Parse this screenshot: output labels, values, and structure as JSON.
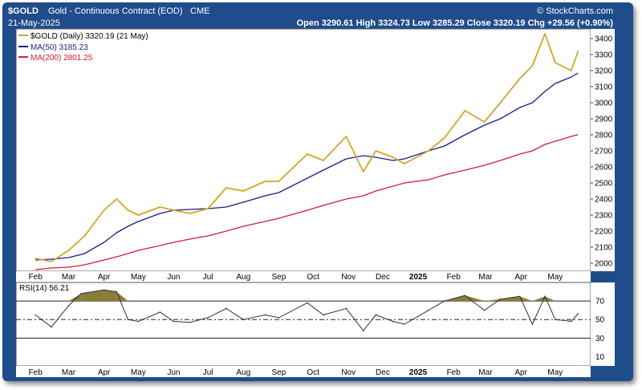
{
  "header": {
    "symbol": "$GOLD",
    "description": "Gold - Continuous Contract (EOD)",
    "exchange": "CME",
    "watermark": "© StockCharts.com",
    "date": "21-May-2025",
    "quote": "Open 3290.61  High 3324.73  Low 3285.29  Close 3320.19  Chg +29.56 (+0.90%)"
  },
  "legend": {
    "price": "$GOLD (Daily) 3320.19 (21 May)",
    "ma50": "MA(50) 3185.23",
    "ma200": "MA(200) 2801.25",
    "rsi": "RSI(14) 56.21"
  },
  "colors": {
    "frame": "#1f4d8b",
    "price": "#d4a52b",
    "ma50": "#1c1c8c",
    "ma200": "#d41a3c",
    "rsi_fill": "#8a7d3c"
  },
  "chart_data": [
    {
      "type": "line",
      "title": "$GOLD (Daily)",
      "x": [
        "2024-02-01",
        "2024-02-15",
        "2024-03-01",
        "2024-03-15",
        "2024-04-01",
        "2024-04-12",
        "2024-04-22",
        "2024-05-01",
        "2024-05-20",
        "2024-06-01",
        "2024-06-15",
        "2024-07-01",
        "2024-07-17",
        "2024-08-01",
        "2024-08-20",
        "2024-09-01",
        "2024-09-26",
        "2024-10-10",
        "2024-10-30",
        "2024-11-14",
        "2024-11-25",
        "2024-12-10",
        "2024-12-20",
        "2025-01-10",
        "2025-01-24",
        "2025-02-11",
        "2025-02-28",
        "2025-03-14",
        "2025-03-31",
        "2025-04-11",
        "2025-04-22",
        "2025-05-01",
        "2025-05-15",
        "2025-05-21"
      ],
      "series": [
        {
          "name": "$GOLD (Daily)",
          "values": [
            2030,
            2010,
            2080,
            2170,
            2330,
            2400,
            2330,
            2300,
            2350,
            2330,
            2310,
            2340,
            2470,
            2450,
            2510,
            2510,
            2680,
            2640,
            2790,
            2570,
            2700,
            2660,
            2620,
            2700,
            2780,
            2950,
            2880,
            3000,
            3150,
            3230,
            3430,
            3250,
            3200,
            3320
          ]
        },
        {
          "name": "MA(50)",
          "values": [
            2020,
            2025,
            2035,
            2060,
            2130,
            2190,
            2230,
            2260,
            2310,
            2330,
            2335,
            2340,
            2350,
            2380,
            2420,
            2440,
            2530,
            2580,
            2650,
            2670,
            2660,
            2640,
            2650,
            2700,
            2730,
            2800,
            2860,
            2900,
            2970,
            3000,
            3070,
            3120,
            3160,
            3185
          ]
        },
        {
          "name": "MA(200)",
          "values": [
            1960,
            1970,
            1975,
            1990,
            2020,
            2040,
            2060,
            2080,
            2110,
            2130,
            2150,
            2170,
            2200,
            2230,
            2260,
            2280,
            2330,
            2360,
            2400,
            2420,
            2450,
            2480,
            2500,
            2520,
            2550,
            2580,
            2610,
            2640,
            2680,
            2700,
            2740,
            2760,
            2790,
            2801
          ]
        }
      ],
      "ylim": [
        1950,
        3460
      ],
      "yticks": [
        2000,
        2100,
        2200,
        2300,
        2400,
        2500,
        2600,
        2700,
        2800,
        2900,
        3000,
        3100,
        3200,
        3300,
        3400
      ],
      "xticks": [
        "Feb",
        "Mar",
        "Apr",
        "May",
        "Jun",
        "Jul",
        "Aug",
        "Sep",
        "Oct",
        "Nov",
        "Dec",
        "2025",
        "Feb",
        "Mar",
        "Apr",
        "May"
      ],
      "grid": false,
      "legend_position": "top-left"
    },
    {
      "type": "line",
      "title": "RSI(14) 56.21",
      "x": [
        "2024-02-01",
        "2024-02-15",
        "2024-03-01",
        "2024-03-12",
        "2024-04-01",
        "2024-04-12",
        "2024-04-22",
        "2024-05-01",
        "2024-05-20",
        "2024-06-01",
        "2024-06-15",
        "2024-07-01",
        "2024-07-17",
        "2024-08-01",
        "2024-08-20",
        "2024-09-01",
        "2024-09-26",
        "2024-10-10",
        "2024-10-30",
        "2024-11-14",
        "2024-11-25",
        "2024-12-10",
        "2024-12-20",
        "2025-01-10",
        "2025-01-24",
        "2025-02-11",
        "2025-02-28",
        "2025-03-14",
        "2025-03-31",
        "2025-04-11",
        "2025-04-22",
        "2025-05-01",
        "2025-05-15",
        "2025-05-21"
      ],
      "series": [
        {
          "name": "RSI(14)",
          "values": [
            55,
            42,
            65,
            78,
            82,
            80,
            50,
            48,
            58,
            48,
            47,
            52,
            62,
            50,
            55,
            52,
            68,
            55,
            62,
            38,
            55,
            48,
            45,
            60,
            70,
            76,
            60,
            72,
            75,
            45,
            75,
            50,
            48,
            56.21
          ]
        }
      ],
      "ylim": [
        0,
        90
      ],
      "yticks": [
        10,
        30,
        50,
        70
      ],
      "reference_lines": [
        30,
        50,
        70
      ],
      "xticks": [
        "Feb",
        "Mar",
        "Apr",
        "May",
        "Jun",
        "Jul",
        "Aug",
        "Sep",
        "Oct",
        "Nov",
        "Dec",
        "2025",
        "Feb",
        "Mar",
        "Apr",
        "May"
      ]
    }
  ]
}
